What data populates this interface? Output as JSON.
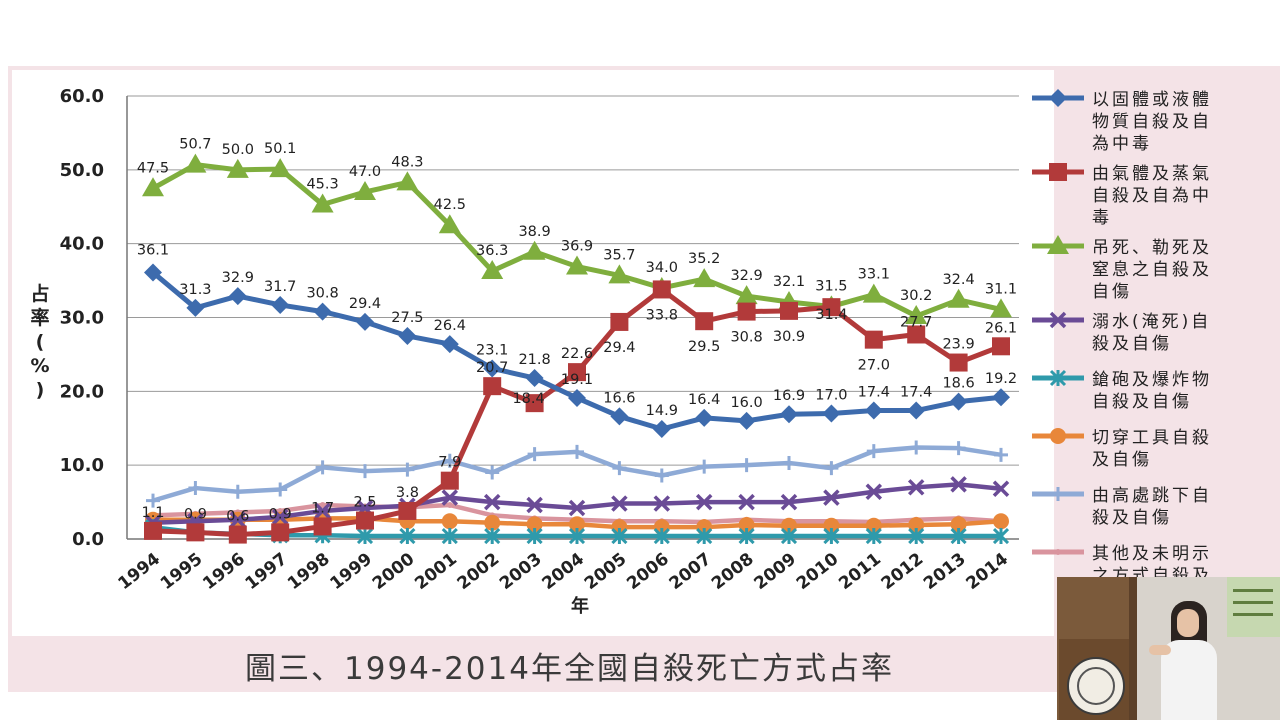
{
  "caption": "圖三、1994-2014年全國自殺死亡方式占率",
  "video_inset": {
    "description_icon": "presenter-video-icon"
  },
  "chart_data": {
    "type": "line",
    "title": "",
    "xlabel": "年",
    "ylabel_chars": [
      "占",
      "率",
      "(",
      "%",
      ")"
    ],
    "ylabel": "占率(%)",
    "ylim": [
      0,
      60
    ],
    "y_ticks": [
      "0.0",
      "10.0",
      "20.0",
      "30.0",
      "40.0",
      "50.0",
      "60.0"
    ],
    "y_tick_values": [
      0,
      10,
      20,
      30,
      40,
      50,
      60
    ],
    "categories": [
      "1994",
      "1995",
      "1996",
      "1997",
      "1998",
      "1999",
      "2000",
      "2001",
      "2002",
      "2003",
      "2004",
      "2005",
      "2006",
      "2007",
      "2008",
      "2009",
      "2010",
      "2011",
      "2012",
      "2013",
      "2014"
    ],
    "grid": true,
    "series": [
      {
        "name_lines": [
          "以固體或液體",
          "物質自殺及自",
          "為中毒"
        ],
        "color": "#3d6bad",
        "marker": "diamond",
        "values": [
          36.1,
          31.3,
          32.9,
          31.7,
          30.8,
          29.4,
          27.5,
          26.4,
          23.1,
          21.8,
          19.1,
          16.6,
          14.9,
          16.4,
          16.0,
          16.9,
          17.0,
          17.4,
          17.4,
          18.6,
          19.2
        ],
        "labels": [
          "36.1",
          "31.3",
          "32.9",
          "31.7",
          "30.8",
          "29.4",
          "27.5",
          "26.4",
          "23.1",
          "21.8",
          "19.1",
          "16.6",
          "14.9",
          "16.4",
          "16.0",
          "16.9",
          "17.0",
          "17.4",
          "17.4",
          "18.6",
          "19.2"
        ]
      },
      {
        "name_lines": [
          "由氣體及蒸氣",
          "自殺及自為中",
          "毒"
        ],
        "color": "#b23a3a",
        "marker": "square",
        "values": [
          1.1,
          0.9,
          0.6,
          0.9,
          1.7,
          2.5,
          3.8,
          7.9,
          20.7,
          18.4,
          22.6,
          29.4,
          33.8,
          29.5,
          30.8,
          30.9,
          31.4,
          27.0,
          27.7,
          23.9,
          26.1
        ],
        "labels": [
          "1.1",
          "0.9",
          "0.6",
          "0.9",
          "1.7",
          "2.5",
          "3.8",
          "7.9",
          "20.7",
          "18.4",
          "22.6",
          "29.4",
          "33.8",
          "29.5",
          "30.8",
          "30.9",
          "31.4",
          "27.0",
          "27.7",
          "23.9",
          "26.1"
        ]
      },
      {
        "name_lines": [
          "吊死、勒死及",
          "窒息之自殺及",
          "自傷"
        ],
        "color": "#7fae3e",
        "marker": "triangle",
        "values": [
          47.5,
          50.7,
          50.0,
          50.1,
          45.3,
          47.0,
          48.3,
          42.5,
          36.3,
          38.9,
          36.9,
          35.7,
          34.0,
          35.2,
          32.9,
          32.1,
          31.5,
          33.1,
          30.2,
          32.4,
          31.1
        ],
        "labels": [
          "47.5",
          "50.7",
          "50.0",
          "50.1",
          "45.3",
          "47.0",
          "48.3",
          "42.5",
          "36.3",
          "38.9",
          "36.9",
          "35.7",
          "34.0",
          "35.2",
          "32.9",
          "32.1",
          "31.5",
          "33.1",
          "30.2",
          "32.4",
          "31.1"
        ]
      },
      {
        "name_lines": [
          "溺水(淹死)自",
          "殺及自傷"
        ],
        "color": "#6a4b96",
        "marker": "x",
        "values": [
          2.2,
          2.4,
          2.6,
          3.0,
          3.8,
          4.2,
          4.5,
          5.6,
          5.0,
          4.6,
          4.2,
          4.8,
          4.8,
          5.0,
          5.0,
          5.0,
          5.6,
          6.4,
          7.0,
          7.4,
          6.8
        ],
        "labels": []
      },
      {
        "name_lines": [
          "鎗砲及爆炸物",
          "自殺及自傷"
        ],
        "color": "#2f9aab",
        "marker": "star",
        "values": [
          1.6,
          0.9,
          0.7,
          0.5,
          0.5,
          0.4,
          0.4,
          0.4,
          0.4,
          0.4,
          0.4,
          0.4,
          0.4,
          0.4,
          0.4,
          0.4,
          0.4,
          0.4,
          0.4,
          0.4,
          0.4
        ],
        "labels": []
      },
      {
        "name_lines": [
          "切穿工具自殺",
          "及自傷"
        ],
        "color": "#e8873a",
        "marker": "circle",
        "values": [
          2.6,
          2.6,
          2.6,
          2.6,
          2.8,
          2.8,
          2.4,
          2.4,
          2.2,
          2.0,
          2.0,
          1.6,
          1.6,
          1.6,
          1.9,
          1.8,
          1.8,
          1.8,
          1.9,
          2.0,
          2.4
        ],
        "labels": []
      },
      {
        "name_lines": [
          "由高處跳下自",
          "殺及自傷"
        ],
        "color": "#8eaad6",
        "marker": "plus",
        "values": [
          5.2,
          6.9,
          6.4,
          6.7,
          9.7,
          9.2,
          9.4,
          10.6,
          9.0,
          11.5,
          11.8,
          9.6,
          8.6,
          9.8,
          10.0,
          10.3,
          9.6,
          11.9,
          12.4,
          12.3,
          11.4
        ],
        "labels": []
      },
      {
        "name_lines": [
          "其他及未明示",
          "之方式自殺及"
        ],
        "color": "#d9949e",
        "marker": "line",
        "values": [
          3.2,
          3.4,
          3.6,
          3.8,
          4.6,
          4.4,
          4.3,
          4.6,
          3.2,
          2.8,
          2.6,
          2.4,
          2.4,
          2.3,
          2.6,
          2.4,
          2.4,
          2.3,
          2.6,
          2.8,
          2.4
        ],
        "labels": []
      }
    ]
  }
}
